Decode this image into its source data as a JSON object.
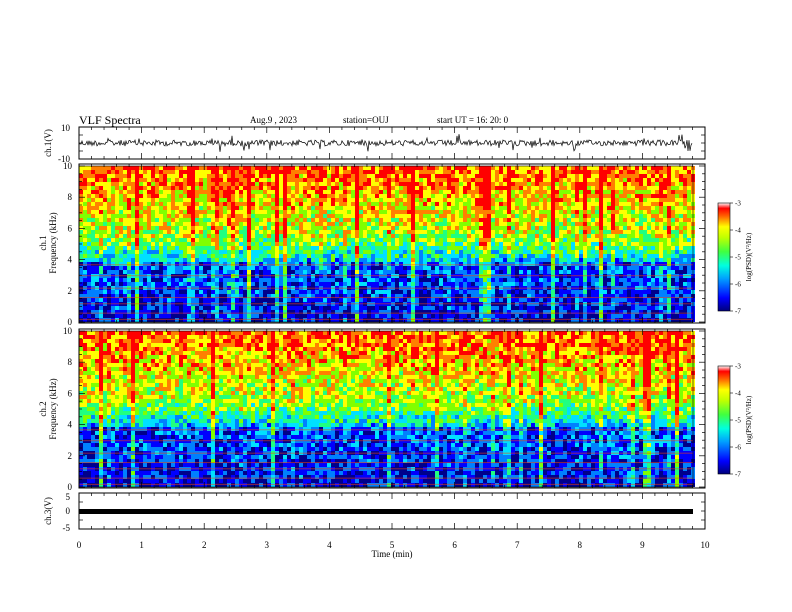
{
  "header": {
    "title": "VLF Spectra",
    "date": "Aug.9 , 2023",
    "station": "station=OUJ",
    "start": "start UT = 16: 20: 0"
  },
  "chart_data": [
    {
      "type": "line",
      "name": "ch1-waveform",
      "ylabel": "ch.1(V)",
      "ylim": [
        -10,
        10
      ],
      "yticks": [
        "10",
        "-10"
      ],
      "xlim": [
        0,
        10
      ]
    },
    {
      "type": "heatmap",
      "name": "ch1-spectrogram",
      "ylabel": "ch.1",
      "ylabel2": "Frequency (kHz)",
      "ylim": [
        0,
        10
      ],
      "yticks": [
        "0",
        "2",
        "4",
        "6",
        "8",
        "10"
      ],
      "xlim": [
        0,
        10
      ],
      "colorbar": {
        "label": "log(PSD)(V²/Hz)",
        "range": [
          -7,
          -3
        ],
        "ticks": [
          "-3",
          "-4",
          "-5",
          "-6",
          "-7"
        ]
      }
    },
    {
      "type": "heatmap",
      "name": "ch2-spectrogram",
      "ylabel": "ch.2",
      "ylabel2": "Frequency (kHz)",
      "ylim": [
        0,
        10
      ],
      "yticks": [
        "0",
        "2",
        "4",
        "6",
        "8",
        "10"
      ],
      "xlim": [
        0,
        10
      ],
      "colorbar": {
        "label": "log(PSD)(V²/Hz)",
        "range": [
          -7,
          -3
        ],
        "ticks": [
          "-3",
          "-4",
          "-5",
          "-6",
          "-7"
        ]
      }
    },
    {
      "type": "line",
      "name": "ch3-waveform",
      "ylabel": "ch.3(V)",
      "ylim": [
        -5,
        5
      ],
      "yticks": [
        "5",
        "0",
        "-5"
      ],
      "xlim": [
        0,
        10
      ],
      "xlabel": "Time (min)",
      "xticks": [
        "0",
        "1",
        "2",
        "3",
        "4",
        "5",
        "6",
        "7",
        "8",
        "9",
        "10"
      ]
    }
  ],
  "colors": {
    "spectrum": [
      "#00008b",
      "#0000ff",
      "#0080ff",
      "#00e0ff",
      "#20ff80",
      "#80ff00",
      "#ffff00",
      "#ff8000",
      "#ff0000"
    ]
  }
}
